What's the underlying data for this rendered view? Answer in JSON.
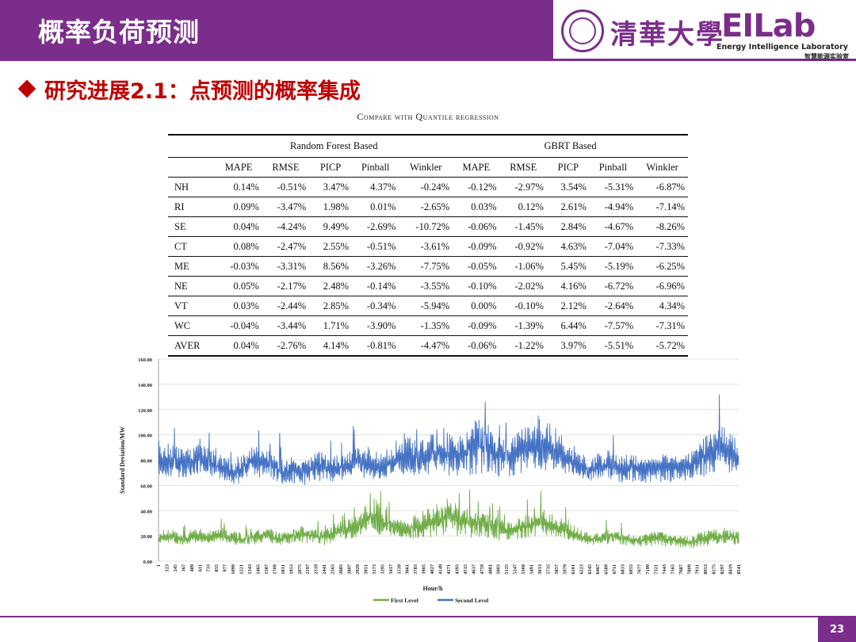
{
  "header": {
    "title": "概率负荷预测"
  },
  "logo": {
    "university": "清華大學",
    "lab": "EILab",
    "lab_en": "Energy Intelligence Laboratory",
    "lab_cn": "智慧能源实验室"
  },
  "subtitle": "研究进展2.1：点预测的概率集成",
  "table": {
    "caption": "Compare with Quantile regression",
    "groups": [
      "Random Forest Based",
      "GBRT Based"
    ],
    "columns": [
      "MAPE",
      "RMSE",
      "PICP",
      "Pinball",
      "Winkler",
      "MAPE",
      "RMSE",
      "PICP",
      "Pinball",
      "Winkler"
    ],
    "rows": [
      {
        "name": "NH",
        "values": [
          "0.14%",
          "-0.51%",
          "3.47%",
          "4.37%",
          "-0.24%",
          "-0.12%",
          "-2.97%",
          "3.54%",
          "-5.31%",
          "-6.87%"
        ]
      },
      {
        "name": "RI",
        "values": [
          "0.09%",
          "-3.47%",
          "1.98%",
          "0.01%",
          "-2.65%",
          "0.03%",
          "0.12%",
          "2.61%",
          "-4.94%",
          "-7.14%"
        ]
      },
      {
        "name": "SE",
        "values": [
          "0.04%",
          "-4.24%",
          "9.49%",
          "-2.69%",
          "-10.72%",
          "-0.06%",
          "-1.45%",
          "2.84%",
          "-4.67%",
          "-8.26%"
        ]
      },
      {
        "name": "CT",
        "values": [
          "0.08%",
          "-2.47%",
          "2.55%",
          "-0.51%",
          "-3.61%",
          "-0.09%",
          "-0.92%",
          "4.63%",
          "-7.04%",
          "-7.33%"
        ]
      },
      {
        "name": "ME",
        "values": [
          "-0.03%",
          "-3.31%",
          "8.56%",
          "-3.26%",
          "-7.75%",
          "-0.05%",
          "-1.06%",
          "5.45%",
          "-5.19%",
          "-6.25%"
        ]
      },
      {
        "name": "NE",
        "values": [
          "0.05%",
          "-2.17%",
          "2.48%",
          "-0.14%",
          "-3.55%",
          "-0.10%",
          "-2.02%",
          "4.16%",
          "-6.72%",
          "-6.96%"
        ]
      },
      {
        "name": "VT",
        "values": [
          "0.03%",
          "-2.44%",
          "2.85%",
          "-0.34%",
          "-5.94%",
          "0.00%",
          "-0.10%",
          "2.12%",
          "-2.64%",
          "4.34%"
        ]
      },
      {
        "name": "WC",
        "values": [
          "-0.04%",
          "-3.44%",
          "1.71%",
          "-3.90%",
          "-1.35%",
          "-0.09%",
          "-1.39%",
          "6.44%",
          "-7.57%",
          "-7.31%"
        ]
      },
      {
        "name": "AVER",
        "values": [
          "0.04%",
          "-2.76%",
          "4.14%",
          "-0.81%",
          "-4.47%",
          "-0.06%",
          "-1.22%",
          "3.97%",
          "-5.51%",
          "-5.72%"
        ]
      }
    ]
  },
  "chart_data": {
    "type": "line",
    "title": "",
    "xlabel": "Hour/h",
    "ylabel": "Standard Deviation/MW",
    "ylim": [
      0,
      160
    ],
    "yticks": [
      "0.00",
      "20.00",
      "40.00",
      "60.00",
      "80.00",
      "100.00",
      "120.00",
      "140.00",
      "160.00"
    ],
    "xticks": [
      "1",
      "123",
      "245",
      "367",
      "489",
      "611",
      "733",
      "855",
      "977",
      "1099",
      "1221",
      "1343",
      "1465",
      "1587",
      "1709",
      "1831",
      "1953",
      "2075",
      "2197",
      "2319",
      "2441",
      "2563",
      "2685",
      "2807",
      "2929",
      "3051",
      "3173",
      "3295",
      "3417",
      "3539",
      "3661",
      "3783",
      "3905",
      "4027",
      "4149",
      "4271",
      "4393",
      "4515",
      "4637",
      "4759",
      "4881",
      "5003",
      "5125",
      "5247",
      "5369",
      "5491",
      "5613",
      "5735",
      "5857",
      "5979",
      "6101",
      "6223",
      "6345",
      "6467",
      "6589",
      "6711",
      "6833",
      "6955",
      "7077",
      "7199",
      "7321",
      "7443",
      "7565",
      "7687",
      "7809",
      "7931",
      "8053",
      "8175",
      "8297",
      "8419",
      "8541"
    ],
    "legend_position": "bottom-center",
    "series": [
      {
        "name": "First Level",
        "color": "#70ad47",
        "mid": [
          18,
          20,
          19,
          17,
          19,
          20,
          18,
          21,
          20,
          19,
          17,
          18,
          20,
          21,
          19,
          18,
          20,
          22,
          21,
          20,
          19,
          22,
          24,
          25,
          27,
          32,
          35,
          30,
          28,
          26,
          25,
          27,
          30,
          31,
          34,
          36,
          33,
          32,
          30,
          31,
          29,
          26,
          24,
          25,
          27,
          28,
          30,
          29,
          27,
          24,
          21,
          19,
          17,
          18,
          19,
          20,
          18,
          17,
          16,
          18,
          19,
          18,
          17,
          16,
          15,
          17,
          18,
          19,
          20,
          19,
          18
        ],
        "amp": [
          5,
          6,
          6,
          5,
          6,
          6,
          5,
          7,
          6,
          6,
          5,
          5,
          6,
          6,
          6,
          5,
          6,
          7,
          7,
          6,
          6,
          7,
          8,
          8,
          9,
          12,
          14,
          12,
          10,
          9,
          9,
          10,
          12,
          12,
          14,
          15,
          13,
          12,
          11,
          11,
          10,
          9,
          8,
          8,
          9,
          10,
          11,
          10,
          9,
          8,
          7,
          6,
          5,
          5,
          6,
          6,
          5,
          5,
          5,
          6,
          6,
          6,
          5,
          5,
          5,
          6,
          6,
          6,
          7,
          6,
          6
        ]
      },
      {
        "name": "Second Level",
        "color": "#4472c4",
        "mid": [
          82,
          80,
          78,
          77,
          76,
          80,
          79,
          74,
          72,
          70,
          73,
          78,
          80,
          77,
          76,
          72,
          74,
          70,
          73,
          75,
          76,
          72,
          74,
          76,
          80,
          78,
          75,
          73,
          78,
          82,
          84,
          80,
          82,
          85,
          88,
          86,
          84,
          88,
          92,
          95,
          90,
          84,
          82,
          85,
          88,
          92,
          95,
          90,
          86,
          82,
          78,
          74,
          72,
          74,
          76,
          74,
          73,
          75,
          74,
          72,
          74,
          76,
          74,
          73,
          78,
          80,
          84,
          88,
          90,
          84,
          82
        ],
        "amp": [
          14,
          13,
          12,
          12,
          12,
          13,
          13,
          11,
          10,
          10,
          11,
          12,
          13,
          12,
          12,
          11,
          11,
          10,
          11,
          12,
          12,
          11,
          11,
          12,
          14,
          13,
          12,
          11,
          13,
          16,
          17,
          14,
          15,
          17,
          19,
          18,
          16,
          19,
          22,
          24,
          20,
          17,
          16,
          17,
          19,
          22,
          24,
          20,
          17,
          15,
          13,
          11,
          10,
          11,
          12,
          11,
          11,
          12,
          11,
          10,
          11,
          12,
          11,
          11,
          13,
          14,
          16,
          18,
          19,
          16,
          15
        ]
      }
    ]
  },
  "footer": {
    "page_number": "23"
  }
}
